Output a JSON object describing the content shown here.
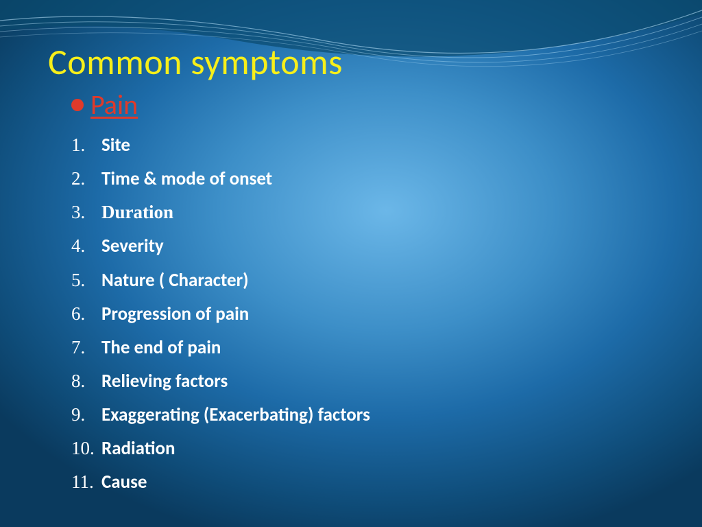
{
  "colors": {
    "title": "#f7ef1a",
    "accent": "#e03a2a",
    "body_text": "#ffffff",
    "bg_center": "#6bb7e8",
    "bg_mid": "#1d6ba8",
    "bg_edge": "#0a3a5e"
  },
  "title": "Common symptoms",
  "bullet": "Pain",
  "items": [
    {
      "n": "1.",
      "text": "Site"
    },
    {
      "n": "2.",
      "text": "Time & mode of onset"
    },
    {
      "n": "3.",
      "text": "Duration",
      "serif": true
    },
    {
      "n": "4.",
      "text": "Severity"
    },
    {
      "n": "5.",
      "text": "Nature ( Character)"
    },
    {
      "n": "6.",
      "text": "Progression of pain"
    },
    {
      "n": "7.",
      "text": "The end of pain"
    },
    {
      "n": "8.",
      "text": "Relieving factors"
    },
    {
      "n": "9.",
      "text": "Exaggerating (Exacerbating) factors"
    },
    {
      "n": "10.",
      "text": "Radiation"
    },
    {
      "n": "11.",
      "text": "Cause"
    }
  ]
}
